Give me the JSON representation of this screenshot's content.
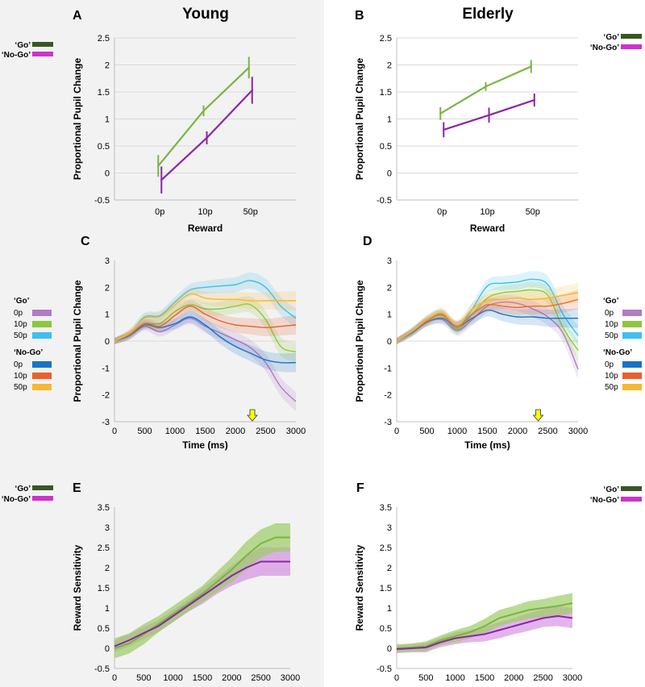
{
  "figure": {
    "group_titles": [
      "Young",
      "Elderly"
    ],
    "panel_labels": [
      "A",
      "B",
      "C",
      "D",
      "E",
      "F"
    ]
  },
  "colors": {
    "go_line": "#7cb342",
    "nogo_line": "#8e24aa",
    "go_legend": "#385723",
    "nogo_legend": "#cc33cc",
    "go_0p": "#b07cc6",
    "go_10p": "#8dc63f",
    "go_50p": "#3fbfef",
    "nogo_0p": "#1a73c8",
    "nogo_10p": "#e8612c",
    "nogo_50p": "#f7b731",
    "go_band": "#9ccc65",
    "nogo_band": "#cc77dd"
  },
  "legend_gonogo": {
    "go": "‘Go’",
    "nogo": "‘No-Go’"
  },
  "legend_conditions": {
    "go_title": "‘Go’",
    "nogo_title": "‘No-Go’",
    "items": [
      "0p",
      "10p",
      "50p"
    ]
  },
  "chart_data": [
    {
      "panel": "A",
      "type": "line",
      "title": "Young",
      "xlabel": "Reward",
      "ylabel": "Proportional Pupil Change",
      "categories": [
        "0p",
        "10p",
        "50p"
      ],
      "ylim": [
        -0.5,
        2.5
      ],
      "yticks": [
        "-0.5",
        "0",
        "0.5",
        "1",
        "1.5",
        "2",
        "2.5"
      ],
      "series": [
        {
          "name": "‘Go’",
          "values": [
            0.13,
            1.15,
            1.95
          ],
          "errors": [
            0.2,
            0.1,
            0.2
          ]
        },
        {
          "name": "‘No-Go’",
          "values": [
            -0.13,
            0.65,
            1.53
          ],
          "errors": [
            0.25,
            0.12,
            0.25
          ]
        }
      ]
    },
    {
      "panel": "B",
      "type": "line",
      "title": "Elderly",
      "xlabel": "Reward",
      "ylabel": "Proportional Pupil Change",
      "categories": [
        "0p",
        "10p",
        "50p"
      ],
      "ylim": [
        -0.5,
        2.5
      ],
      "yticks": [
        "-0.5",
        "0",
        "0.5",
        "1",
        "1.5",
        "2",
        "2.5"
      ],
      "series": [
        {
          "name": "‘Go’",
          "values": [
            1.1,
            1.6,
            1.97
          ],
          "errors": [
            0.12,
            0.08,
            0.12
          ]
        },
        {
          "name": "‘No-Go’",
          "values": [
            0.8,
            1.07,
            1.35
          ],
          "errors": [
            0.14,
            0.14,
            0.12
          ]
        }
      ]
    },
    {
      "panel": "C",
      "type": "line",
      "title": "",
      "xlabel": "Time (ms)",
      "ylabel": "Proportional Pupil Change",
      "xlim": [
        0,
        3000
      ],
      "ylim": [
        -3,
        3
      ],
      "xticks": [
        "0",
        "500",
        "1000",
        "1500",
        "2000",
        "2500",
        "3000"
      ],
      "yticks": [
        "-3",
        "-2",
        "-1",
        "0",
        "1",
        "2",
        "3"
      ],
      "marker_time": 2280,
      "time": [
        0,
        250,
        500,
        750,
        1000,
        1250,
        1500,
        1750,
        2000,
        2250,
        2500,
        2750,
        3000
      ],
      "series": [
        {
          "name": "‘Go’ 0p",
          "values": [
            0,
            0.2,
            0.55,
            0.35,
            0.6,
            0.85,
            0.55,
            0.3,
            0.05,
            -0.25,
            -0.8,
            -1.7,
            -2.25
          ]
        },
        {
          "name": "‘Go’ 10p",
          "values": [
            0,
            0.25,
            0.65,
            0.65,
            1.1,
            1.35,
            1.2,
            1.2,
            1.3,
            1.35,
            0.8,
            -0.2,
            -0.4
          ]
        },
        {
          "name": "‘Go’ 50p",
          "values": [
            0,
            0.3,
            0.9,
            0.95,
            1.45,
            1.9,
            2.0,
            2.05,
            2.1,
            2.25,
            2.0,
            1.3,
            0.85
          ]
        },
        {
          "name": "‘No-Go’ 0p",
          "values": [
            0,
            0.2,
            0.6,
            0.5,
            0.65,
            0.9,
            0.6,
            0.15,
            -0.2,
            -0.45,
            -0.7,
            -0.8,
            -0.8
          ]
        },
        {
          "name": "‘No-Go’ 10p",
          "values": [
            0,
            0.25,
            0.65,
            0.55,
            0.95,
            1.3,
            1.0,
            0.75,
            0.6,
            0.55,
            0.5,
            0.55,
            0.6
          ]
        },
        {
          "name": "‘No-Go’ 50p",
          "values": [
            0,
            0.3,
            0.85,
            0.9,
            1.35,
            1.75,
            1.6,
            1.55,
            1.55,
            1.5,
            1.5,
            1.5,
            1.5
          ]
        }
      ]
    },
    {
      "panel": "D",
      "type": "line",
      "title": "",
      "xlabel": "Time (ms)",
      "ylabel": "Proportional Pupil Change",
      "xlim": [
        0,
        3000
      ],
      "ylim": [
        -3,
        3
      ],
      "xticks": [
        "0",
        "500",
        "1000",
        "1500",
        "2000",
        "2500",
        "3000"
      ],
      "yticks": [
        "-3",
        "-2",
        "-1",
        "0",
        "1",
        "2",
        "3"
      ],
      "marker_time": 2340,
      "time": [
        0,
        250,
        500,
        750,
        1000,
        1250,
        1500,
        1750,
        2000,
        2250,
        2500,
        2750,
        3000
      ],
      "series": [
        {
          "name": "‘Go’ 0p",
          "values": [
            0,
            0.3,
            0.7,
            0.8,
            0.4,
            0.8,
            1.3,
            1.45,
            1.4,
            1.2,
            0.9,
            0.3,
            -1.05
          ]
        },
        {
          "name": "‘Go’ 10p",
          "values": [
            0,
            0.35,
            0.75,
            0.95,
            0.45,
            1.0,
            1.6,
            1.8,
            1.85,
            1.9,
            1.7,
            0.5,
            -0.35
          ]
        },
        {
          "name": "‘Go’ 50p",
          "values": [
            0,
            0.35,
            0.8,
            1.0,
            0.5,
            1.2,
            2.05,
            2.15,
            2.2,
            2.3,
            2.1,
            1.0,
            0.2
          ]
        },
        {
          "name": "‘No-Go’ 0p",
          "values": [
            0,
            0.3,
            0.7,
            0.85,
            0.55,
            0.85,
            1.15,
            1.0,
            0.9,
            0.9,
            0.85,
            0.85,
            0.85
          ]
        },
        {
          "name": "‘No-Go’ 10p",
          "values": [
            0,
            0.35,
            0.75,
            1.0,
            0.55,
            1.0,
            1.35,
            1.3,
            1.25,
            1.3,
            1.3,
            1.4,
            1.55
          ]
        },
        {
          "name": "‘No-Go’ 50p",
          "values": [
            0,
            0.35,
            0.8,
            1.05,
            0.6,
            1.2,
            1.5,
            1.55,
            1.6,
            1.55,
            1.6,
            1.7,
            1.8
          ]
        }
      ]
    },
    {
      "panel": "E",
      "type": "area",
      "title": "",
      "xlabel": "Time (ms)",
      "ylabel": "Reward Sensitivity",
      "xlim": [
        0,
        3000
      ],
      "ylim": [
        -0.5,
        3.5
      ],
      "xticks": [
        "0",
        "500",
        "1000",
        "1500",
        "2000",
        "2500",
        "3000"
      ],
      "yticks": [
        "-0.5",
        "0",
        "0.5",
        "1",
        "1.5",
        "2",
        "2.5",
        "3",
        "3.5"
      ],
      "time": [
        0,
        250,
        500,
        750,
        1000,
        1250,
        1500,
        1750,
        2000,
        2250,
        2500,
        2750,
        3000
      ],
      "series": [
        {
          "name": "‘Go’",
          "values": [
            0,
            0.12,
            0.35,
            0.6,
            0.85,
            1.1,
            1.35,
            1.65,
            1.95,
            2.3,
            2.6,
            2.75,
            2.75
          ],
          "errors": [
            0.25,
            0.25,
            0.25,
            0.2,
            0.2,
            0.2,
            0.2,
            0.25,
            0.3,
            0.35,
            0.35,
            0.35,
            0.35
          ]
        },
        {
          "name": "‘No-Go’",
          "values": [
            0.05,
            0.2,
            0.38,
            0.55,
            0.8,
            1.05,
            1.3,
            1.55,
            1.8,
            2.0,
            2.15,
            2.15,
            2.15
          ],
          "errors": [
            0.15,
            0.15,
            0.15,
            0.15,
            0.15,
            0.15,
            0.2,
            0.2,
            0.25,
            0.3,
            0.35,
            0.35,
            0.35
          ]
        }
      ]
    },
    {
      "panel": "F",
      "type": "area",
      "title": "",
      "xlabel": "Time (ms)",
      "ylabel": "Reward Sensitivity",
      "xlim": [
        0,
        3000
      ],
      "ylim": [
        -0.5,
        3.5
      ],
      "xticks": [
        "0",
        "500",
        "1000",
        "1500",
        "2000",
        "2500",
        "3000"
      ],
      "yticks": [
        "-0.5",
        "0",
        "0.5",
        "1",
        "1.5",
        "2",
        "2.5",
        "3",
        "3.5"
      ],
      "time": [
        0,
        250,
        500,
        750,
        1000,
        1250,
        1500,
        1750,
        2000,
        2250,
        2500,
        2750,
        3000
      ],
      "series": [
        {
          "name": "‘Go’",
          "values": [
            0,
            0.02,
            0.05,
            0.2,
            0.3,
            0.4,
            0.55,
            0.75,
            0.85,
            0.95,
            1.0,
            1.05,
            1.12
          ],
          "errors": [
            0.1,
            0.1,
            0.12,
            0.12,
            0.15,
            0.15,
            0.18,
            0.2,
            0.2,
            0.22,
            0.22,
            0.25,
            0.25
          ]
        },
        {
          "name": "‘No-Go’",
          "values": [
            -0.02,
            0.0,
            0.02,
            0.15,
            0.25,
            0.3,
            0.35,
            0.45,
            0.55,
            0.65,
            0.75,
            0.8,
            0.75
          ],
          "errors": [
            0.1,
            0.1,
            0.12,
            0.12,
            0.15,
            0.15,
            0.18,
            0.2,
            0.2,
            0.22,
            0.22,
            0.25,
            0.25
          ]
        }
      ]
    }
  ]
}
